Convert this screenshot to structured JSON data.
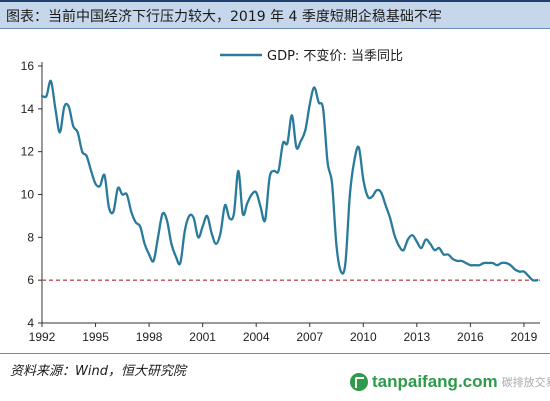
{
  "header": {
    "title": "图表：当前中国经济下行压力较大，2019 年 4 季度短期企稳基础不牢"
  },
  "footer": {
    "source": "资料来源：Wind，恒大研究院",
    "watermark_text": "tanpaifang.com",
    "watermark_faint": "碳排放交易网"
  },
  "colors": {
    "series": "#2a7a9b",
    "reference": "#c0504d",
    "title_bg": "#c6d7ec",
    "watermark": "#2e9a4a"
  },
  "chart_data": {
    "type": "line",
    "title": "",
    "xlabel": "",
    "ylabel": "",
    "xlim": [
      1992,
      2019.9
    ],
    "ylim": [
      4,
      16
    ],
    "x_ticks": [
      "1992",
      "1995",
      "1998",
      "2001",
      "2004",
      "2007",
      "2010",
      "2013",
      "2016",
      "2019"
    ],
    "y_ticks": [
      "4",
      "6",
      "8",
      "10",
      "12",
      "14",
      "16"
    ],
    "legend_position": "top-right",
    "grid": false,
    "series": [
      {
        "name": "GDP: 不变价: 当季同比",
        "x": [
          1992.0,
          1992.25,
          1992.5,
          1992.75,
          1993.0,
          1993.25,
          1993.5,
          1993.75,
          1994.0,
          1994.25,
          1994.5,
          1994.75,
          1995.0,
          1995.25,
          1995.5,
          1995.75,
          1996.0,
          1996.25,
          1996.5,
          1996.75,
          1997.0,
          1997.25,
          1997.5,
          1997.75,
          1998.0,
          1998.25,
          1998.5,
          1998.75,
          1999.0,
          1999.25,
          1999.5,
          1999.75,
          2000.0,
          2000.25,
          2000.5,
          2000.75,
          2001.0,
          2001.25,
          2001.5,
          2001.75,
          2002.0,
          2002.25,
          2002.5,
          2002.75,
          2003.0,
          2003.25,
          2003.5,
          2003.75,
          2004.0,
          2004.25,
          2004.5,
          2004.75,
          2005.0,
          2005.25,
          2005.5,
          2005.75,
          2006.0,
          2006.25,
          2006.5,
          2006.75,
          2007.0,
          2007.25,
          2007.5,
          2007.75,
          2008.0,
          2008.25,
          2008.5,
          2008.75,
          2009.0,
          2009.25,
          2009.5,
          2009.75,
          2010.0,
          2010.25,
          2010.5,
          2010.75,
          2011.0,
          2011.25,
          2011.5,
          2011.75,
          2012.0,
          2012.25,
          2012.5,
          2012.75,
          2013.0,
          2013.25,
          2013.5,
          2013.75,
          2014.0,
          2014.25,
          2014.5,
          2014.75,
          2015.0,
          2015.25,
          2015.5,
          2015.75,
          2016.0,
          2016.25,
          2016.5,
          2016.75,
          2017.0,
          2017.25,
          2017.5,
          2017.75,
          2018.0,
          2018.25,
          2018.5,
          2018.75,
          2019.0,
          2019.25,
          2019.5,
          2019.75
        ],
        "values": [
          14.6,
          14.6,
          15.3,
          14.0,
          12.9,
          14.1,
          14.1,
          13.2,
          12.9,
          12.0,
          11.8,
          11.1,
          10.5,
          10.4,
          10.9,
          9.4,
          9.2,
          10.3,
          10.0,
          10.0,
          9.2,
          8.7,
          8.5,
          7.7,
          7.2,
          6.9,
          8.0,
          9.1,
          8.8,
          7.7,
          7.1,
          6.8,
          8.3,
          9.0,
          8.9,
          8.0,
          8.5,
          9.0,
          8.2,
          7.7,
          8.2,
          9.5,
          8.9,
          9.1,
          11.1,
          9.1,
          9.6,
          10.0,
          10.1,
          9.4,
          8.8,
          10.8,
          11.1,
          11.1,
          12.4,
          12.4,
          13.7,
          12.2,
          12.5,
          13.0,
          14.2,
          15.0,
          14.3,
          14.0,
          11.5,
          10.5,
          7.6,
          6.4,
          6.8,
          10.0,
          11.6,
          12.2,
          10.7,
          9.9,
          9.9,
          10.2,
          10.1,
          9.5,
          8.9,
          8.1,
          7.6,
          7.4,
          7.9,
          8.1,
          7.8,
          7.5,
          7.9,
          7.7,
          7.4,
          7.5,
          7.2,
          7.2,
          7.0,
          6.9,
          6.9,
          6.8,
          6.7,
          6.7,
          6.7,
          6.8,
          6.8,
          6.8,
          6.7,
          6.8,
          6.8,
          6.7,
          6.5,
          6.4,
          6.4,
          6.2,
          6.0,
          6.0
        ]
      }
    ],
    "reference_line": {
      "y": 6.0
    }
  }
}
